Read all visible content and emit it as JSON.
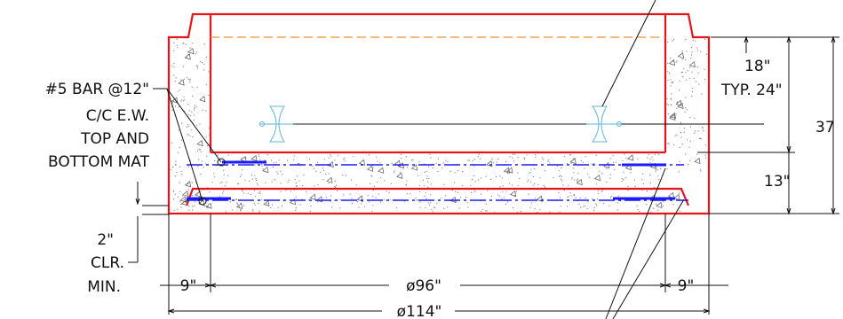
{
  "drawing": {
    "rebar_note": {
      "line1": "#5 BAR @12\"",
      "line2": "C/C E.W.",
      "line3": "TOP AND",
      "line4": "BOTTOM MAT"
    },
    "clearance_note": {
      "line1": "2\"",
      "line2": "CLR.",
      "line3": "MIN."
    },
    "dimensions": {
      "top_offset": "18\"",
      "typ": "TYP. 24\"",
      "total_height": "37",
      "slab_thickness": "13\"",
      "wall_left": "9\"",
      "inner_diameter": "ø96\"",
      "wall_right": "9\"",
      "outer_diameter": "ø114\""
    }
  },
  "colors": {
    "outline": "#e8141c",
    "rebar": "#1a1aff",
    "pipe_line": "#f0902a",
    "bracket": "#5fb6d6"
  }
}
